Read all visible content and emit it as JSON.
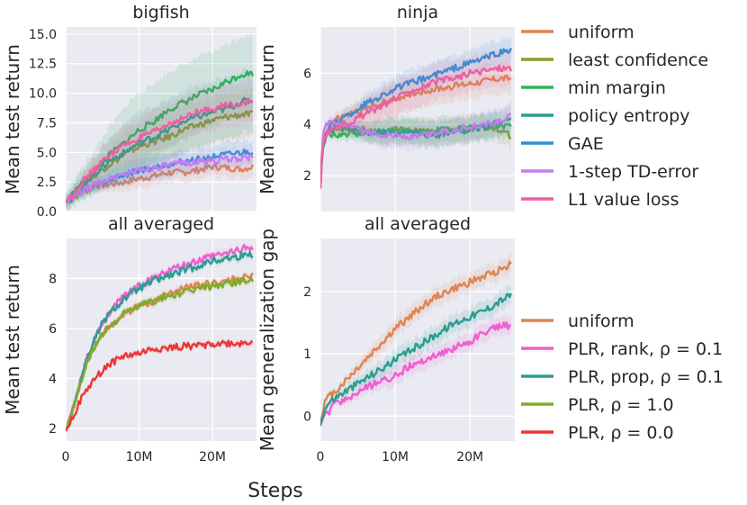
{
  "chart_data": [
    {
      "type": "line",
      "id": "bigfish",
      "title": "bigfish",
      "ylabel": "Mean test return",
      "xlim": [
        0,
        26
      ],
      "ylim": [
        0,
        15.6
      ],
      "yticks": [
        0,
        2.5,
        5,
        7.5,
        10,
        12.5,
        15
      ],
      "ytick_labels": [
        "0.0",
        "2.5",
        "5.0",
        "7.5",
        "10.0",
        "12.5",
        "15.0"
      ],
      "xticks": [
        0,
        10,
        20
      ],
      "xtick_labels": [],
      "legend": "methods",
      "series": [
        {
          "name": "uniform",
          "color": "#dd8452",
          "x": [
            0,
            2,
            4,
            6,
            8,
            10,
            12,
            14,
            16,
            18,
            20,
            22,
            24,
            25.5
          ],
          "y": [
            0.8,
            1.5,
            2.2,
            2.3,
            2.5,
            2.8,
            3.0,
            3.3,
            3.3,
            3.5,
            3.8,
            3.7,
            3.6,
            3.8
          ],
          "spread": 0.8
        },
        {
          "name": "least confidence",
          "color": "#8c9b2c",
          "x": [
            0,
            2,
            4,
            6,
            8,
            10,
            12,
            14,
            16,
            18,
            20,
            22,
            24,
            25.5
          ],
          "y": [
            0.8,
            2.0,
            3.1,
            4.0,
            4.8,
            5.5,
            5.9,
            6.3,
            6.9,
            7.3,
            7.7,
            8.0,
            8.2,
            8.2
          ],
          "spread": 2.0
        },
        {
          "name": "min margin",
          "color": "#2fb35a",
          "x": [
            0,
            2,
            4,
            6,
            8,
            10,
            12,
            14,
            16,
            18,
            20,
            22,
            24,
            25.5
          ],
          "y": [
            0.8,
            2.2,
            3.4,
            4.8,
            5.8,
            6.9,
            7.6,
            8.6,
            9.2,
            9.8,
            10.3,
            11.0,
            11.6,
            11.7
          ],
          "spread": 3.2
        },
        {
          "name": "policy entropy",
          "color": "#2a9d8f",
          "x": [
            0,
            2,
            4,
            6,
            8,
            10,
            12,
            14,
            16,
            18,
            20,
            22,
            24,
            25.5
          ],
          "y": [
            0.8,
            2.1,
            3.2,
            4.3,
            5.0,
            5.8,
            6.3,
            6.9,
            7.6,
            8.0,
            8.4,
            8.7,
            9.3,
            9.4
          ],
          "spread": 2.6
        },
        {
          "name": "GAE",
          "color": "#2f8fd6",
          "x": [
            0,
            2,
            4,
            6,
            8,
            10,
            12,
            14,
            16,
            18,
            20,
            22,
            24,
            25.5
          ],
          "y": [
            0.8,
            1.6,
            2.2,
            2.7,
            3.1,
            3.5,
            3.7,
            4.0,
            4.2,
            4.4,
            4.6,
            4.8,
            5.0,
            5.1
          ],
          "spread": 1.0
        },
        {
          "name": "1-step TD-error",
          "color": "#c77bf0",
          "x": [
            0,
            2,
            4,
            6,
            8,
            10,
            12,
            14,
            16,
            18,
            20,
            22,
            24,
            25.5
          ],
          "y": [
            0.8,
            1.6,
            2.3,
            2.8,
            3.2,
            3.5,
            3.7,
            3.9,
            4.1,
            4.2,
            4.3,
            4.4,
            4.5,
            4.6
          ],
          "spread": 0.9
        },
        {
          "name": "L1 value loss",
          "color": "#f05ea0",
          "x": [
            0,
            2,
            4,
            6,
            8,
            10,
            12,
            14,
            16,
            18,
            20,
            22,
            24,
            25.5
          ],
          "y": [
            0.8,
            2.3,
            3.6,
            4.8,
            5.6,
            6.2,
            6.7,
            7.4,
            7.9,
            8.4,
            8.7,
            9.0,
            9.2,
            9.3
          ],
          "spread": 1.8
        }
      ]
    },
    {
      "type": "line",
      "id": "ninja",
      "title": "ninja",
      "ylabel": "Mean test return",
      "xlim": [
        0,
        26
      ],
      "ylim": [
        0.6,
        7.8
      ],
      "yticks": [
        2,
        4,
        6
      ],
      "ytick_labels": [
        "2",
        "4",
        "6"
      ],
      "xticks": [
        0,
        10,
        20
      ],
      "xtick_labels": [],
      "legend": "methods",
      "series": [
        {
          "name": "uniform",
          "color": "#dd8452",
          "x": [
            0,
            0.3,
            1,
            2,
            4,
            6,
            8,
            10,
            12,
            14,
            16,
            18,
            20,
            22,
            24,
            25.5
          ],
          "y": [
            1.5,
            3.4,
            3.9,
            4.2,
            4.4,
            4.6,
            4.8,
            5.0,
            5.2,
            5.3,
            5.4,
            5.5,
            5.6,
            5.7,
            5.8,
            5.8
          ],
          "spread": 0.6
        },
        {
          "name": "least confidence",
          "color": "#8c9b2c",
          "x": [
            0,
            0.3,
            1,
            2,
            4,
            6,
            8,
            10,
            12,
            14,
            16,
            18,
            20,
            22,
            24,
            25.5
          ],
          "y": [
            1.5,
            3.2,
            3.7,
            3.8,
            3.8,
            3.8,
            3.7,
            3.8,
            3.8,
            3.7,
            3.7,
            3.8,
            3.8,
            3.9,
            3.8,
            3.5
          ],
          "spread": 0.5
        },
        {
          "name": "min margin",
          "color": "#2fb35a",
          "x": [
            0,
            0.3,
            1,
            2,
            4,
            6,
            8,
            10,
            12,
            14,
            16,
            18,
            20,
            22,
            24,
            25.5
          ],
          "y": [
            1.5,
            3.1,
            3.6,
            3.6,
            3.6,
            3.7,
            3.7,
            3.8,
            3.7,
            3.7,
            3.8,
            3.8,
            3.9,
            3.9,
            4.0,
            3.9
          ],
          "spread": 0.5
        },
        {
          "name": "policy entropy",
          "color": "#2a9d8f",
          "x": [
            0,
            0.3,
            1,
            2,
            4,
            6,
            8,
            10,
            12,
            14,
            16,
            18,
            20,
            22,
            24,
            25.5
          ],
          "y": [
            1.5,
            3.3,
            3.8,
            3.9,
            3.8,
            3.7,
            3.7,
            3.6,
            3.7,
            3.6,
            3.6,
            3.7,
            3.8,
            3.9,
            4.1,
            4.2
          ],
          "spread": 0.5
        },
        {
          "name": "GAE",
          "color": "#2f8fd6",
          "x": [
            0,
            0.3,
            1,
            2,
            4,
            6,
            8,
            10,
            12,
            14,
            16,
            18,
            20,
            22,
            24,
            25.5
          ],
          "y": [
            1.5,
            3.3,
            3.8,
            4.1,
            4.4,
            4.8,
            5.1,
            5.4,
            5.6,
            5.8,
            6.0,
            6.2,
            6.4,
            6.6,
            6.8,
            6.9
          ],
          "spread": 0.5
        },
        {
          "name": "1-step TD-error",
          "color": "#c77bf0",
          "x": [
            0,
            0.3,
            1,
            2,
            4,
            6,
            8,
            10,
            12,
            14,
            16,
            18,
            20,
            22,
            24,
            25.5
          ],
          "y": [
            1.5,
            3.5,
            4.1,
            4.0,
            3.9,
            3.7,
            3.6,
            3.6,
            3.5,
            3.6,
            3.7,
            3.8,
            3.9,
            4.0,
            4.1,
            4.3
          ],
          "spread": 0.5
        },
        {
          "name": "L1 value loss",
          "color": "#f05ea0",
          "x": [
            0,
            0.3,
            1,
            2,
            4,
            6,
            8,
            10,
            12,
            14,
            16,
            18,
            20,
            22,
            24,
            25.5
          ],
          "y": [
            1.5,
            3.2,
            3.7,
            3.9,
            4.1,
            4.4,
            4.7,
            5.0,
            5.3,
            5.5,
            5.7,
            5.8,
            6.0,
            6.1,
            6.2,
            6.2
          ],
          "spread": 0.7
        }
      ]
    },
    {
      "type": "line",
      "id": "avg-return",
      "title": "all averaged",
      "ylabel": "Mean test return",
      "xlim": [
        0,
        26
      ],
      "ylim": [
        1.5,
        9.6
      ],
      "yticks": [
        2,
        4,
        6,
        8
      ],
      "ytick_labels": [
        "2",
        "4",
        "6",
        "8"
      ],
      "xticks": [
        0,
        10,
        20
      ],
      "xtick_labels": [
        "0",
        "10M",
        "20M"
      ],
      "legend": "plr",
      "series": [
        {
          "name": "uniform",
          "color": "#dd8452",
          "x": [
            0,
            1,
            2,
            3,
            4,
            5,
            6,
            8,
            10,
            12,
            14,
            16,
            18,
            20,
            22,
            24,
            25.5
          ],
          "y": [
            1.9,
            2.8,
            3.8,
            4.7,
            5.3,
            5.8,
            6.1,
            6.6,
            6.9,
            7.1,
            7.4,
            7.6,
            7.7,
            7.8,
            7.9,
            8.0,
            8.1
          ],
          "spread": 0.15
        },
        {
          "name": "PLR, rank, ρ = 0.1",
          "color": "#f05ed0",
          "x": [
            0,
            1,
            2,
            3,
            4,
            5,
            6,
            8,
            10,
            12,
            14,
            16,
            18,
            20,
            22,
            24,
            25.5
          ],
          "y": [
            1.9,
            2.8,
            3.9,
            4.9,
            5.6,
            6.2,
            6.7,
            7.3,
            7.7,
            8.0,
            8.3,
            8.5,
            8.7,
            8.9,
            9.0,
            9.2,
            9.3
          ],
          "spread": 0.15
        },
        {
          "name": "PLR, prop, ρ = 0.1",
          "color": "#2a9d8f",
          "x": [
            0,
            1,
            2,
            3,
            4,
            5,
            6,
            8,
            10,
            12,
            14,
            16,
            18,
            20,
            22,
            24,
            25.5
          ],
          "y": [
            1.9,
            2.8,
            3.9,
            4.9,
            5.6,
            6.2,
            6.6,
            7.2,
            7.6,
            7.9,
            8.1,
            8.3,
            8.5,
            8.7,
            8.8,
            8.9,
            9.0
          ],
          "spread": 0.15
        },
        {
          "name": "PLR, ρ = 1.0",
          "color": "#7cad2a",
          "x": [
            0,
            1,
            2,
            3,
            4,
            5,
            6,
            8,
            10,
            12,
            14,
            16,
            18,
            20,
            22,
            24,
            25.5
          ],
          "y": [
            1.9,
            2.8,
            3.8,
            4.7,
            5.3,
            5.8,
            6.1,
            6.6,
            6.9,
            7.1,
            7.3,
            7.4,
            7.6,
            7.7,
            7.8,
            7.9,
            7.95
          ],
          "spread": 0.15
        },
        {
          "name": "PLR, ρ = 0.0",
          "color": "#ee3535",
          "x": [
            0,
            1,
            2,
            3,
            4,
            5,
            6,
            8,
            10,
            12,
            14,
            16,
            18,
            20,
            22,
            24,
            25.5
          ],
          "y": [
            1.9,
            2.5,
            3.1,
            3.6,
            4.0,
            4.3,
            4.6,
            4.9,
            5.0,
            5.2,
            5.2,
            5.3,
            5.3,
            5.4,
            5.4,
            5.4,
            5.5
          ],
          "spread": 0.12
        }
      ]
    },
    {
      "type": "line",
      "id": "avg-gap",
      "title": "all averaged",
      "ylabel": "Mean generalization gap",
      "xlim": [
        0,
        26
      ],
      "ylim": [
        -0.4,
        2.85
      ],
      "yticks": [
        0,
        1,
        2
      ],
      "ytick_labels": [
        "0",
        "1",
        "2"
      ],
      "xticks": [
        0,
        10,
        20
      ],
      "xtick_labels": [
        "0",
        "10M",
        "20M"
      ],
      "legend": "plr",
      "series": [
        {
          "name": "uniform",
          "color": "#dd8452",
          "x": [
            0,
            0.5,
            1,
            2,
            4,
            6,
            8,
            10,
            12,
            14,
            16,
            18,
            20,
            22,
            24,
            25.5
          ],
          "y": [
            -0.15,
            0.2,
            0.3,
            0.4,
            0.65,
            0.9,
            1.15,
            1.4,
            1.6,
            1.8,
            1.95,
            2.05,
            2.15,
            2.25,
            2.35,
            2.45
          ],
          "spread": 0.15
        },
        {
          "name": "PLR, rank, ρ = 0.1",
          "color": "#f05ed0",
          "x": [
            0,
            0.5,
            1,
            2,
            4,
            6,
            8,
            10,
            12,
            14,
            16,
            18,
            20,
            22,
            24,
            25.5
          ],
          "y": [
            -0.15,
            0.0,
            0.05,
            0.2,
            0.3,
            0.45,
            0.55,
            0.65,
            0.8,
            0.9,
            1.0,
            1.1,
            1.2,
            1.35,
            1.45,
            1.45
          ],
          "spread": 0.15
        },
        {
          "name": "PLR, prop, ρ = 0.1",
          "color": "#2a9d8f",
          "x": [
            0,
            0.5,
            1,
            2,
            4,
            6,
            8,
            10,
            12,
            14,
            16,
            18,
            20,
            22,
            24,
            25.5
          ],
          "y": [
            -0.15,
            0.1,
            0.2,
            0.3,
            0.45,
            0.6,
            0.75,
            0.9,
            1.05,
            1.2,
            1.35,
            1.5,
            1.6,
            1.7,
            1.85,
            1.95
          ],
          "spread": 0.15
        }
      ]
    }
  ],
  "legends": {
    "methods": [
      {
        "label": "uniform",
        "color": "#dd8452"
      },
      {
        "label": "least confidence",
        "color": "#8c9b2c"
      },
      {
        "label": "min margin",
        "color": "#2fb35a"
      },
      {
        "label": "policy entropy",
        "color": "#2a9d8f"
      },
      {
        "label": "GAE",
        "color": "#2f8fd6"
      },
      {
        "label": "1-step TD-error",
        "color": "#c77bf0"
      },
      {
        "label": "L1 value loss",
        "color": "#f05ea0"
      }
    ],
    "plr": [
      {
        "label": "uniform",
        "color": "#dd8452"
      },
      {
        "label": "PLR, rank, ρ = 0.1",
        "color": "#f05ed0"
      },
      {
        "label": "PLR, prop, ρ = 0.1",
        "color": "#2a9d8f"
      },
      {
        "label": "PLR, ρ = 1.0",
        "color": "#7cad2a"
      },
      {
        "label": "PLR, ρ = 0.0",
        "color": "#ee3535"
      }
    ]
  },
  "xlabel": "Steps"
}
